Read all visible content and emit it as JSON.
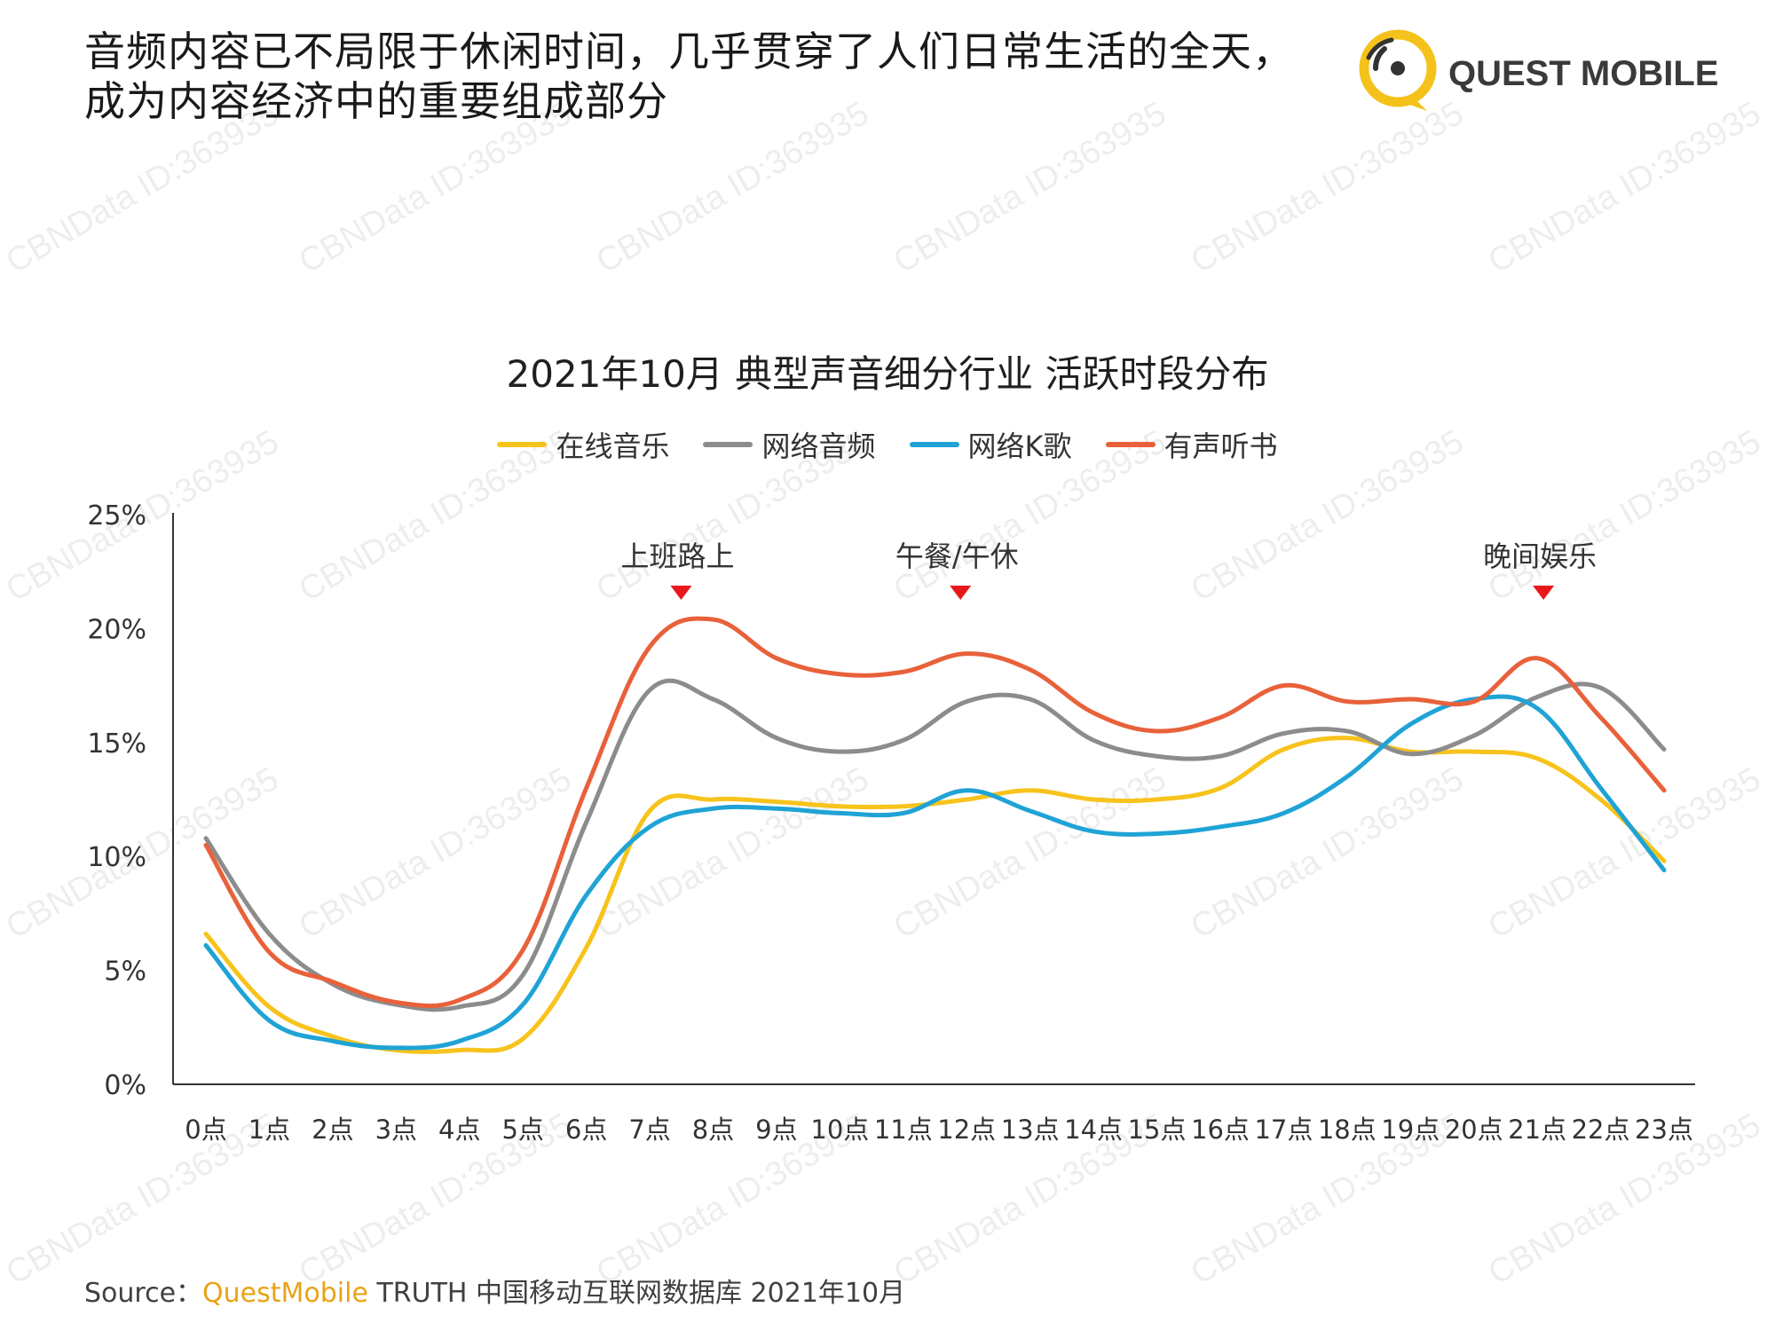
{
  "header": {
    "title_line1": "音频内容已不局限于休闲时间，几乎贯穿了人们日常生活的全天，",
    "title_line2": "成为内容经济中的重要组成部分",
    "brand": "QUEST MOBILE",
    "brand_colors": {
      "ring": "#f5c21b",
      "dots": "#333333"
    }
  },
  "watermark": "CBNData ID:363935",
  "source": {
    "prefix": "Source：",
    "brand": "QuestMobile",
    "text": " TRUTH 中国移动互联网数据库 2021年10月"
  },
  "chart_data": {
    "type": "line",
    "title": "2021年10月 典型声音细分行业 活跃时段分布",
    "categories": [
      "0点",
      "1点",
      "2点",
      "3点",
      "4点",
      "5点",
      "6点",
      "7点",
      "8点",
      "9点",
      "10点",
      "11点",
      "12点",
      "13点",
      "14点",
      "15点",
      "16点",
      "17点",
      "18点",
      "19点",
      "20点",
      "21点",
      "22点",
      "23点"
    ],
    "y_ticks": [
      "0%",
      "5%",
      "10%",
      "15%",
      "20%",
      "25%"
    ],
    "ylim": [
      0,
      25
    ],
    "grid": false,
    "legend_position": "top",
    "series": [
      {
        "name": "在线音乐",
        "color": "#f7c31c",
        "values": [
          6.6,
          3.4,
          2.1,
          1.5,
          1.5,
          2.0,
          6.0,
          12.0,
          12.5,
          12.4,
          12.2,
          12.2,
          12.5,
          12.9,
          12.5,
          12.5,
          13.0,
          14.7,
          15.2,
          14.6,
          14.6,
          14.3,
          12.5,
          9.8
        ]
      },
      {
        "name": "网络音频",
        "color": "#8c8c8c",
        "values": [
          10.8,
          6.6,
          4.4,
          3.5,
          3.4,
          4.8,
          11.5,
          17.3,
          16.9,
          15.2,
          14.6,
          15.1,
          16.8,
          16.9,
          15.1,
          14.4,
          14.4,
          15.4,
          15.5,
          14.5,
          15.3,
          17.0,
          17.4,
          14.7
        ]
      },
      {
        "name": "网络K歌",
        "color": "#1fa3d6",
        "values": [
          6.1,
          2.8,
          1.9,
          1.6,
          1.9,
          3.5,
          8.3,
          11.3,
          12.1,
          12.1,
          11.9,
          11.9,
          12.9,
          12.0,
          11.1,
          11.0,
          11.3,
          11.9,
          13.5,
          15.8,
          16.9,
          16.5,
          13.0,
          9.4
        ]
      },
      {
        "name": "有声听书",
        "color": "#e8613a",
        "values": [
          10.5,
          5.8,
          4.5,
          3.6,
          3.7,
          5.9,
          13.0,
          19.2,
          20.4,
          18.7,
          18.0,
          18.1,
          18.9,
          18.2,
          16.3,
          15.5,
          16.1,
          17.5,
          16.8,
          16.9,
          16.8,
          18.7,
          16.1,
          12.9
        ]
      }
    ],
    "annotations": [
      {
        "label": "上班路上",
        "category": "8点"
      },
      {
        "label": "午餐/午休",
        "category": "12点"
      },
      {
        "label": "晚间娱乐",
        "category": "21点"
      }
    ],
    "annotation_marker_color": "#e8181a"
  }
}
